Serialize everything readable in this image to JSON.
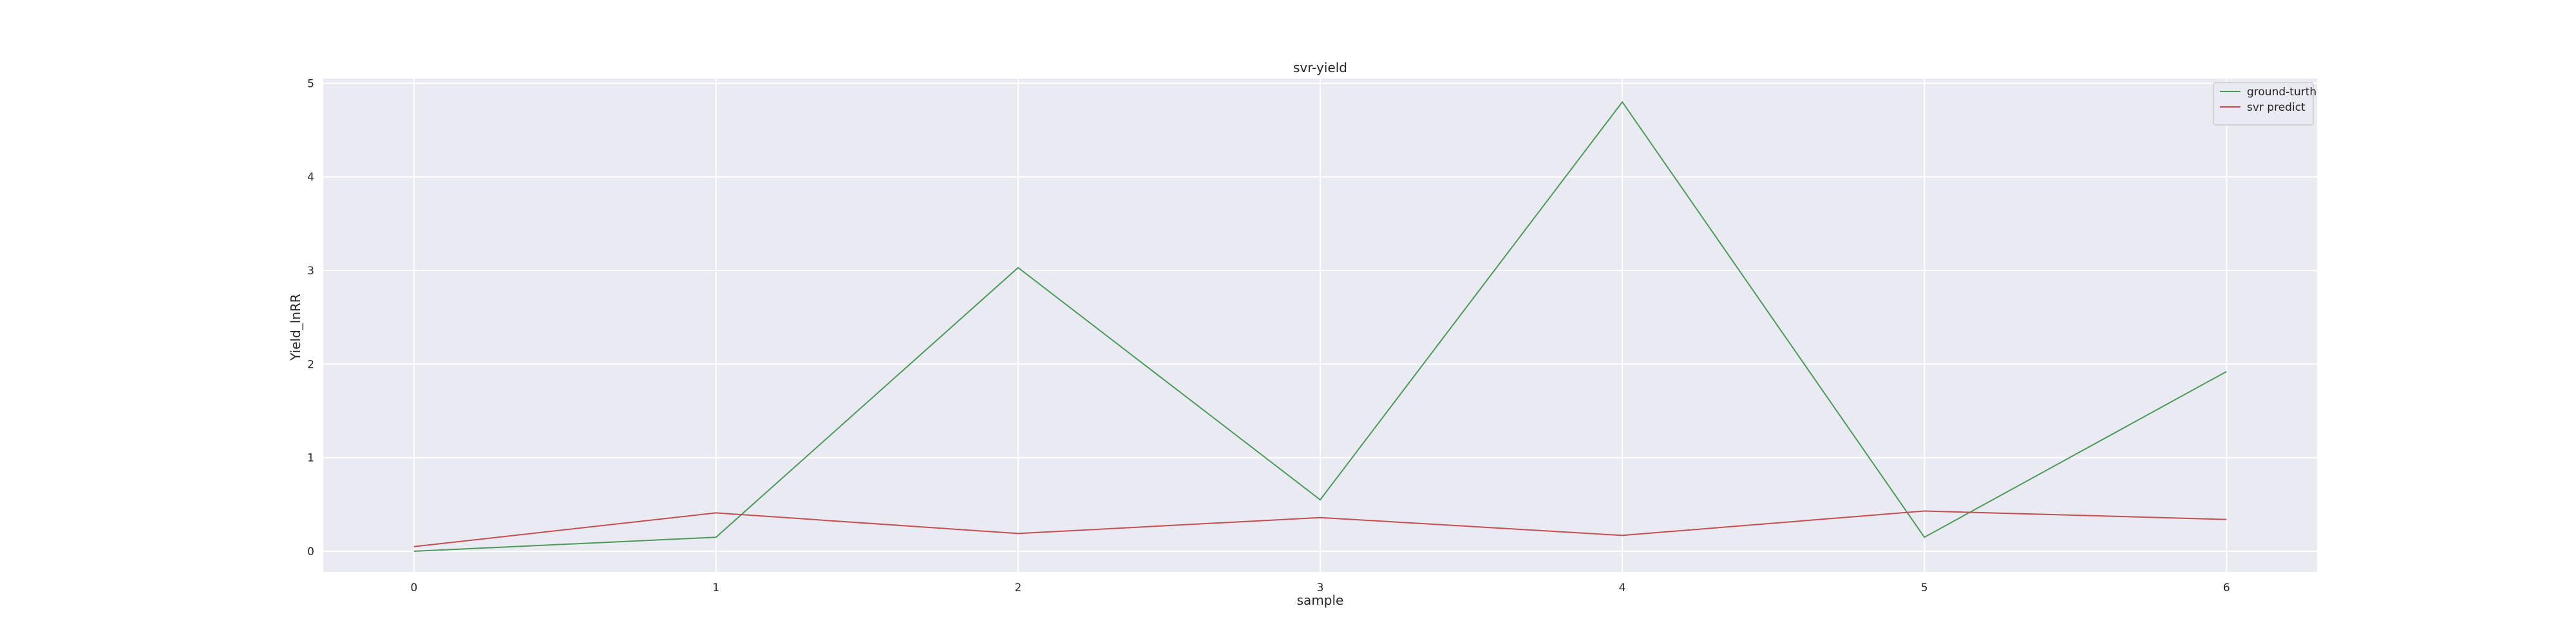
{
  "chart_data": {
    "type": "line",
    "title": "svr-yield",
    "xlabel": "sample",
    "ylabel": "Yield_lnRR",
    "x": [
      0,
      1,
      2,
      3,
      4,
      5,
      6
    ],
    "xticks": [
      "0",
      "1",
      "2",
      "3",
      "4",
      "5",
      "6"
    ],
    "yticks": [
      "0",
      "1",
      "2",
      "3",
      "4",
      "5"
    ],
    "xlim": [
      -0.3,
      6.3
    ],
    "ylim": [
      -0.22,
      5.05
    ],
    "grid": true,
    "legend_position": "top-right",
    "series": [
      {
        "name": "ground-turth",
        "color": "#4c9a5a",
        "values": [
          0.0,
          0.15,
          3.03,
          0.55,
          4.8,
          0.15,
          1.92
        ]
      },
      {
        "name": "svr predict",
        "color": "#c44e52",
        "values": [
          0.05,
          0.41,
          0.19,
          0.36,
          0.17,
          0.43,
          0.34
        ]
      }
    ]
  }
}
